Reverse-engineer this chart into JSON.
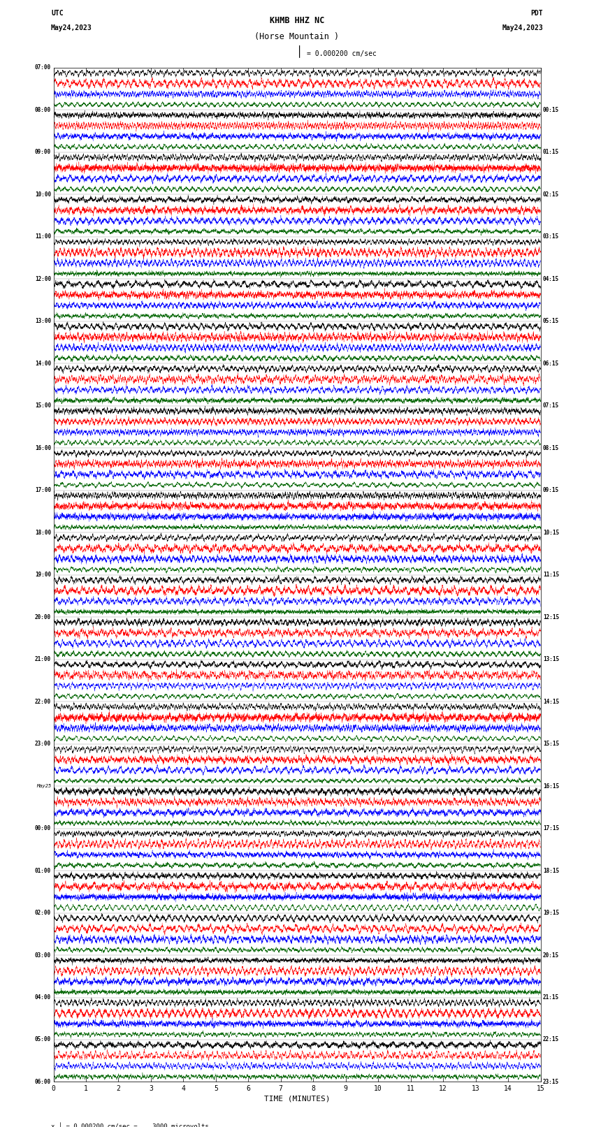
{
  "title_line1": "KHMB HHZ NC",
  "title_line2": "(Horse Mountain )",
  "scale_label": "= 0.000200 cm/sec",
  "left_label": "UTC",
  "left_date": "May24,2023",
  "right_label": "PDT",
  "right_date": "May24,2023",
  "bottom_label": "TIME (MINUTES)",
  "bottom_note_a": "= 0.000200 cm/sec =    3000 microvolts",
  "left_times": [
    "07:00",
    "08:00",
    "09:00",
    "10:00",
    "11:00",
    "12:00",
    "13:00",
    "14:00",
    "15:00",
    "16:00",
    "17:00",
    "18:00",
    "19:00",
    "20:00",
    "21:00",
    "22:00",
    "23:00",
    "May25",
    "00:00",
    "01:00",
    "02:00",
    "03:00",
    "04:00",
    "05:00",
    "06:00"
  ],
  "right_times": [
    "00:15",
    "01:15",
    "02:15",
    "03:15",
    "04:15",
    "05:15",
    "06:15",
    "07:15",
    "08:15",
    "09:15",
    "10:15",
    "11:15",
    "12:15",
    "13:15",
    "14:15",
    "15:15",
    "16:15",
    "17:15",
    "18:15",
    "19:15",
    "20:15",
    "21:15",
    "22:15",
    "23:15"
  ],
  "num_rows": 24,
  "traces_per_row": 4,
  "colors": [
    "black",
    "red",
    "blue",
    "darkgreen"
  ],
  "xlabel_ticks": [
    0,
    1,
    2,
    3,
    4,
    5,
    6,
    7,
    8,
    9,
    10,
    11,
    12,
    13,
    14,
    15
  ],
  "fig_width": 8.5,
  "fig_height": 16.13,
  "bg_color": "white",
  "seed": 42
}
